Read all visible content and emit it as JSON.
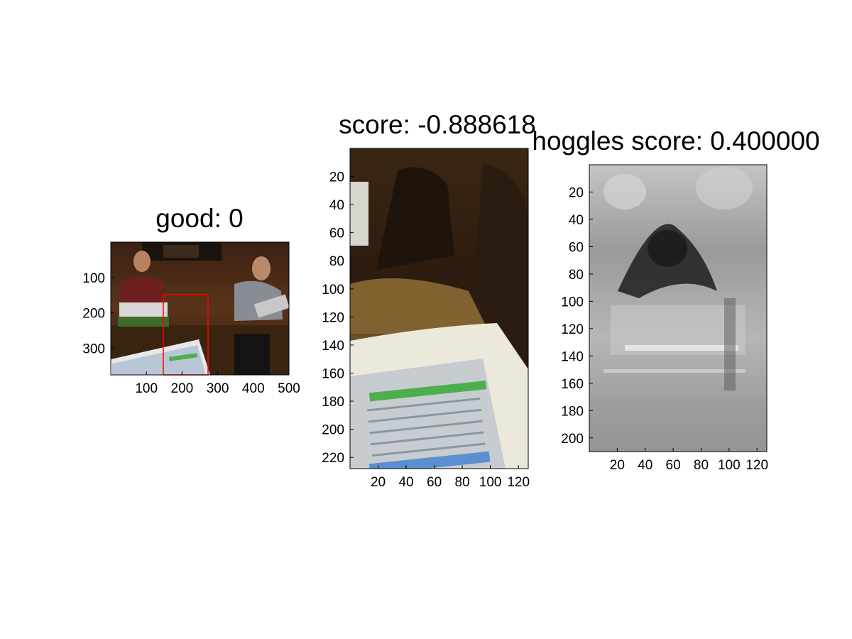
{
  "chart_data": [
    {
      "type": "image",
      "title": "good: 0",
      "xlim": [
        0,
        500
      ],
      "ylim": [
        0,
        375
      ],
      "y_reversed": true,
      "xticks": [
        100,
        200,
        300,
        400,
        500
      ],
      "yticks": [
        100,
        200,
        300
      ],
      "annotation": {
        "type": "bounding-box",
        "color": "#ff0000",
        "x0": 148,
        "y0": 148,
        "x1": 273,
        "y1": 375
      },
      "image_description_icon": "photo-people-with-laptops-icon"
    },
    {
      "type": "image",
      "title": "score: -0.888618",
      "xlim": [
        0,
        127
      ],
      "ylim": [
        0,
        228
      ],
      "y_reversed": true,
      "xticks": [
        20,
        40,
        60,
        80,
        100,
        120
      ],
      "yticks": [
        20,
        40,
        60,
        80,
        100,
        120,
        140,
        160,
        180,
        200,
        220
      ],
      "image_description_icon": "cropped-laptop-photo-icon"
    },
    {
      "type": "heatmap",
      "title": "hoggles score: 0.400000",
      "xlim": [
        0,
        127
      ],
      "ylim": [
        0,
        210
      ],
      "y_reversed": true,
      "colormap": "gray",
      "xticks": [
        20,
        40,
        60,
        80,
        100,
        120
      ],
      "yticks": [
        20,
        40,
        60,
        80,
        100,
        120,
        140,
        160,
        180,
        200
      ],
      "image_description_icon": "hog-visualization-icon"
    }
  ]
}
